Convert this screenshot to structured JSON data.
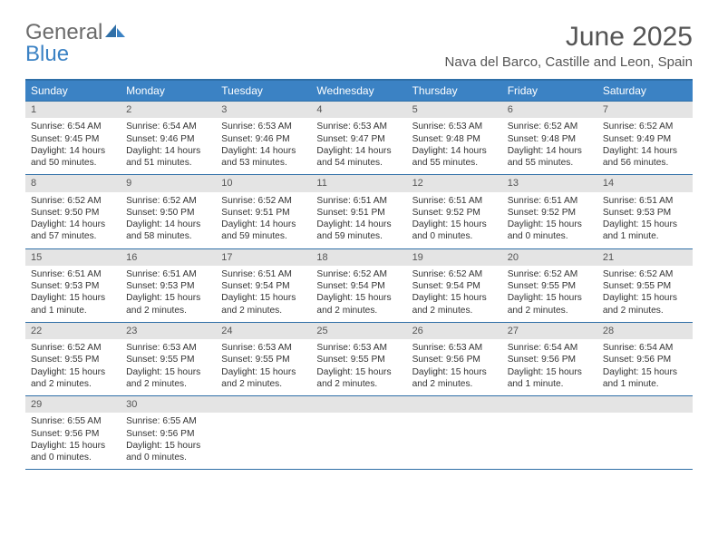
{
  "logo": {
    "text1": "General",
    "text2": "Blue"
  },
  "title": "June 2025",
  "subtitle": "Nava del Barco, Castille and Leon, Spain",
  "colors": {
    "header_bg": "#3b82c4",
    "border": "#2f6fa7",
    "daynum_bg": "#e4e4e4",
    "text": "#333333",
    "title_text": "#555555"
  },
  "day_names": [
    "Sunday",
    "Monday",
    "Tuesday",
    "Wednesday",
    "Thursday",
    "Friday",
    "Saturday"
  ],
  "weeks": [
    [
      {
        "n": "1",
        "sr": "6:54 AM",
        "ss": "9:45 PM",
        "dl": "14 hours and 50 minutes."
      },
      {
        "n": "2",
        "sr": "6:54 AM",
        "ss": "9:46 PM",
        "dl": "14 hours and 51 minutes."
      },
      {
        "n": "3",
        "sr": "6:53 AM",
        "ss": "9:46 PM",
        "dl": "14 hours and 53 minutes."
      },
      {
        "n": "4",
        "sr": "6:53 AM",
        "ss": "9:47 PM",
        "dl": "14 hours and 54 minutes."
      },
      {
        "n": "5",
        "sr": "6:53 AM",
        "ss": "9:48 PM",
        "dl": "14 hours and 55 minutes."
      },
      {
        "n": "6",
        "sr": "6:52 AM",
        "ss": "9:48 PM",
        "dl": "14 hours and 55 minutes."
      },
      {
        "n": "7",
        "sr": "6:52 AM",
        "ss": "9:49 PM",
        "dl": "14 hours and 56 minutes."
      }
    ],
    [
      {
        "n": "8",
        "sr": "6:52 AM",
        "ss": "9:50 PM",
        "dl": "14 hours and 57 minutes."
      },
      {
        "n": "9",
        "sr": "6:52 AM",
        "ss": "9:50 PM",
        "dl": "14 hours and 58 minutes."
      },
      {
        "n": "10",
        "sr": "6:52 AM",
        "ss": "9:51 PM",
        "dl": "14 hours and 59 minutes."
      },
      {
        "n": "11",
        "sr": "6:51 AM",
        "ss": "9:51 PM",
        "dl": "14 hours and 59 minutes."
      },
      {
        "n": "12",
        "sr": "6:51 AM",
        "ss": "9:52 PM",
        "dl": "15 hours and 0 minutes."
      },
      {
        "n": "13",
        "sr": "6:51 AM",
        "ss": "9:52 PM",
        "dl": "15 hours and 0 minutes."
      },
      {
        "n": "14",
        "sr": "6:51 AM",
        "ss": "9:53 PM",
        "dl": "15 hours and 1 minute."
      }
    ],
    [
      {
        "n": "15",
        "sr": "6:51 AM",
        "ss": "9:53 PM",
        "dl": "15 hours and 1 minute."
      },
      {
        "n": "16",
        "sr": "6:51 AM",
        "ss": "9:53 PM",
        "dl": "15 hours and 2 minutes."
      },
      {
        "n": "17",
        "sr": "6:51 AM",
        "ss": "9:54 PM",
        "dl": "15 hours and 2 minutes."
      },
      {
        "n": "18",
        "sr": "6:52 AM",
        "ss": "9:54 PM",
        "dl": "15 hours and 2 minutes."
      },
      {
        "n": "19",
        "sr": "6:52 AM",
        "ss": "9:54 PM",
        "dl": "15 hours and 2 minutes."
      },
      {
        "n": "20",
        "sr": "6:52 AM",
        "ss": "9:55 PM",
        "dl": "15 hours and 2 minutes."
      },
      {
        "n": "21",
        "sr": "6:52 AM",
        "ss": "9:55 PM",
        "dl": "15 hours and 2 minutes."
      }
    ],
    [
      {
        "n": "22",
        "sr": "6:52 AM",
        "ss": "9:55 PM",
        "dl": "15 hours and 2 minutes."
      },
      {
        "n": "23",
        "sr": "6:53 AM",
        "ss": "9:55 PM",
        "dl": "15 hours and 2 minutes."
      },
      {
        "n": "24",
        "sr": "6:53 AM",
        "ss": "9:55 PM",
        "dl": "15 hours and 2 minutes."
      },
      {
        "n": "25",
        "sr": "6:53 AM",
        "ss": "9:55 PM",
        "dl": "15 hours and 2 minutes."
      },
      {
        "n": "26",
        "sr": "6:53 AM",
        "ss": "9:56 PM",
        "dl": "15 hours and 2 minutes."
      },
      {
        "n": "27",
        "sr": "6:54 AM",
        "ss": "9:56 PM",
        "dl": "15 hours and 1 minute."
      },
      {
        "n": "28",
        "sr": "6:54 AM",
        "ss": "9:56 PM",
        "dl": "15 hours and 1 minute."
      }
    ],
    [
      {
        "n": "29",
        "sr": "6:55 AM",
        "ss": "9:56 PM",
        "dl": "15 hours and 0 minutes."
      },
      {
        "n": "30",
        "sr": "6:55 AM",
        "ss": "9:56 PM",
        "dl": "15 hours and 0 minutes."
      },
      {
        "n": "",
        "empty": true
      },
      {
        "n": "",
        "empty": true
      },
      {
        "n": "",
        "empty": true
      },
      {
        "n": "",
        "empty": true
      },
      {
        "n": "",
        "empty": true
      }
    ]
  ],
  "labels": {
    "sunrise": "Sunrise: ",
    "sunset": "Sunset: ",
    "daylight": "Daylight: "
  }
}
